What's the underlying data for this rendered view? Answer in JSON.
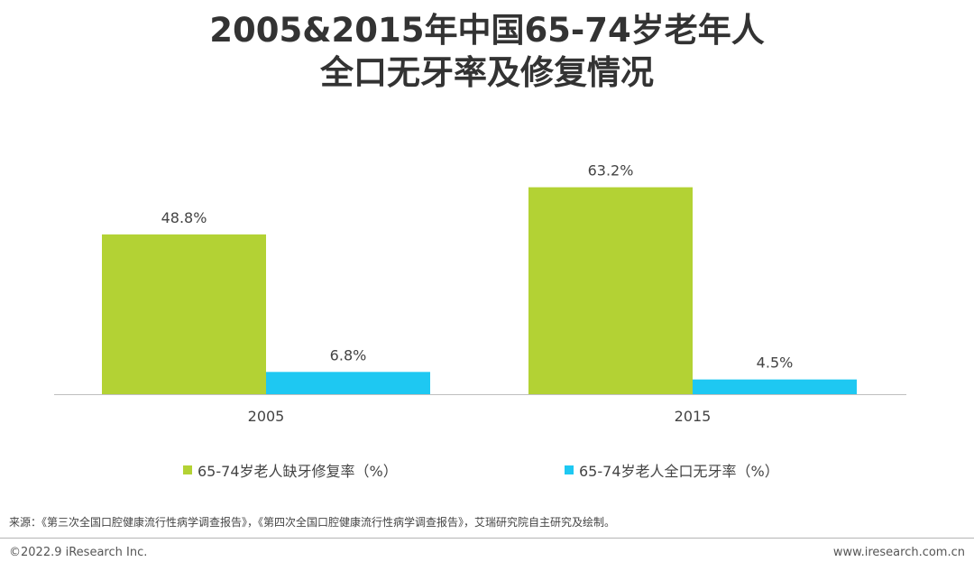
{
  "title": {
    "line1": "2005&2015年中国65-74岁老年人",
    "line2": "全口无牙率及修复情况"
  },
  "chart_data": {
    "type": "bar",
    "categories": [
      "2005",
      "2015"
    ],
    "series": [
      {
        "name": "65-74岁老人缺牙修复率（%）",
        "values": [
          48.8,
          63.2
        ],
        "labels": [
          "48.8%",
          "63.2%"
        ],
        "color": "#b3d234"
      },
      {
        "name": "65-74岁老人全口无牙率（%）",
        "values": [
          6.8,
          4.5
        ],
        "labels": [
          "6.8%",
          "4.5%"
        ],
        "color": "#1ec8f2"
      }
    ],
    "ylim": [
      0,
      80
    ],
    "grid": false,
    "legend_position": "bottom"
  },
  "footer": {
    "source": "来源：《第三次全国口腔健康流行性病学调查报告》，《第四次全国口腔健康流行性病学调查报告》，艾瑞研究院自主研究及绘制。",
    "copyright": "©2022.9 iResearch Inc.",
    "website": "www.iresearch.com.cn"
  }
}
